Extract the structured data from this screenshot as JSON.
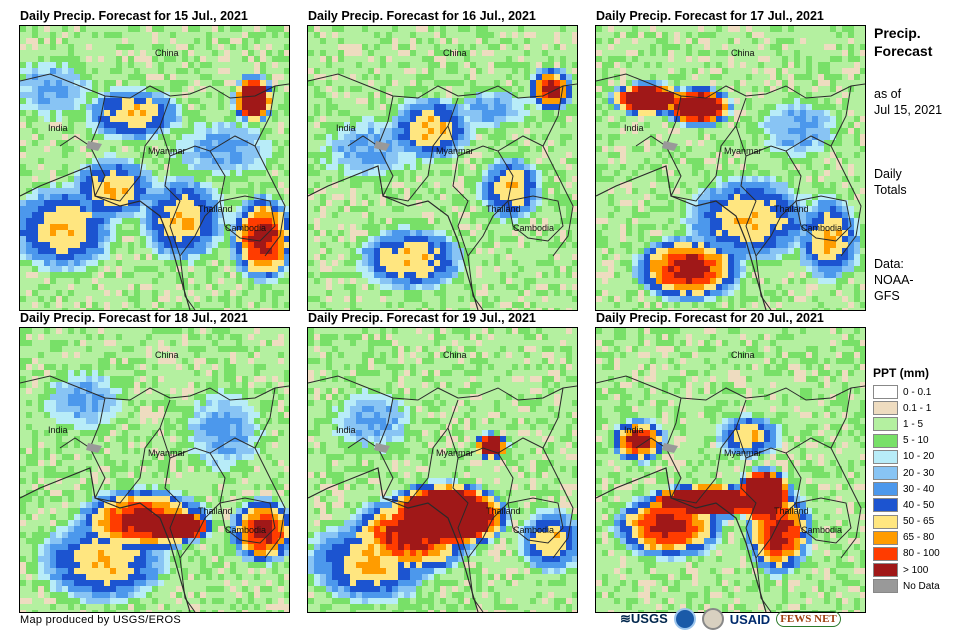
{
  "panels": [
    {
      "title": "Daily Precip. Forecast for 15 Jul., 2021",
      "day": 15
    },
    {
      "title": "Daily Precip. Forecast for 16 Jul., 2021",
      "day": 16
    },
    {
      "title": "Daily Precip. Forecast for 17 Jul., 2021",
      "day": 17
    },
    {
      "title": "Daily Precip. Forecast for 18 Jul., 2021",
      "day": 18
    },
    {
      "title": "Daily Precip. Forecast for 19 Jul., 2021",
      "day": 19
    },
    {
      "title": "Daily Precip. Forecast for 20 Jul., 2021",
      "day": 20
    }
  ],
  "map_labels": {
    "china": "China",
    "india": "India",
    "myanmar": "Myanmar",
    "thailand": "Thailand",
    "cambodia": "Cambodia"
  },
  "side": {
    "title_line1": "Precip.",
    "title_line2": "Forecast",
    "asof_line1": "as of",
    "asof_line2": "Jul 15, 2021",
    "daily_line1": "Daily",
    "daily_line2": "Totals",
    "data_line1": "Data:",
    "data_line2": "NOAA-",
    "data_line3": "GFS"
  },
  "legend": {
    "title": "PPT (mm)",
    "items": [
      {
        "label": "0 - 0.1",
        "color": "#ffffff"
      },
      {
        "label": "0.1 - 1",
        "color": "#eedcc0"
      },
      {
        "label": "1 - 5",
        "color": "#b4f0a0"
      },
      {
        "label": "5 - 10",
        "color": "#78e068"
      },
      {
        "label": "10 - 20",
        "color": "#b8ecf8"
      },
      {
        "label": "20 - 30",
        "color": "#88c4f4"
      },
      {
        "label": "30 - 40",
        "color": "#4c98ec"
      },
      {
        "label": "40 - 50",
        "color": "#1c54d0"
      },
      {
        "label": "50 - 65",
        "color": "#ffe680"
      },
      {
        "label": "65 - 80",
        "color": "#ff9c00"
      },
      {
        "label": "80 - 100",
        "color": "#ff3c00"
      },
      {
        "label": "> 100",
        "color": "#a01818"
      },
      {
        "label": "No Data",
        "color": "#999999"
      }
    ]
  },
  "credit": "Map produced by USGS/EROS",
  "logos": {
    "usgs": "USGS",
    "usaid": "USAID",
    "fewsnet": "FEWS NET"
  }
}
